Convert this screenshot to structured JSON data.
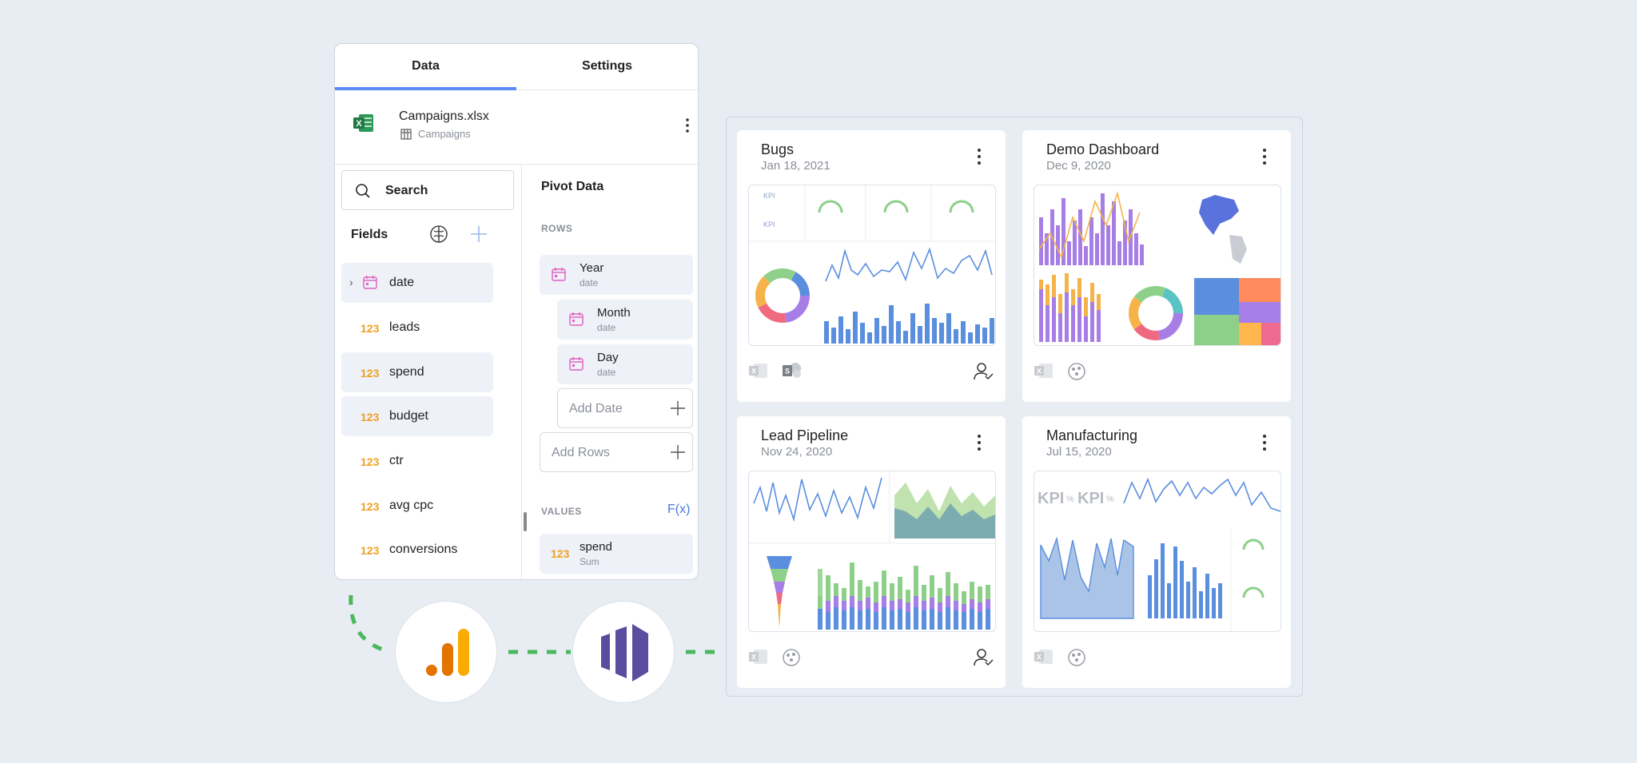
{
  "tabs": {
    "data": "Data",
    "settings": "Settings"
  },
  "file": {
    "name": "Campaigns.xlsx",
    "sheet": "Campaigns"
  },
  "search": {
    "label": "Search"
  },
  "fields": {
    "title": "Fields",
    "items": [
      {
        "label": "date",
        "kind": "date",
        "selected": true
      },
      {
        "label": "leads",
        "kind": "number",
        "selected": false
      },
      {
        "label": "spend",
        "kind": "number",
        "selected": true
      },
      {
        "label": "budget",
        "kind": "number",
        "selected": true
      },
      {
        "label": "ctr",
        "kind": "number",
        "selected": false
      },
      {
        "label": "avg cpc",
        "kind": "number",
        "selected": false
      },
      {
        "label": "conversions",
        "kind": "number",
        "selected": false
      }
    ],
    "number_badge": "123"
  },
  "pivot": {
    "title": "Pivot Data",
    "rows_label": "ROWS",
    "rows": [
      {
        "main": "Year",
        "sub": "date"
      },
      {
        "main": "Month",
        "sub": "date"
      },
      {
        "main": "Day",
        "sub": "date"
      }
    ],
    "add_date": "Add Date",
    "add_rows": "Add Rows",
    "values_label": "VALUES",
    "fx": "F(x)",
    "values": [
      {
        "main": "spend",
        "sub": "Sum"
      }
    ]
  },
  "dashboards": [
    {
      "title": "Bugs",
      "date": "Jan 18, 2021"
    },
    {
      "title": "Demo Dashboard",
      "date": "Dec 9, 2020"
    },
    {
      "title": "Lead Pipeline",
      "date": "Nov 24, 2020"
    },
    {
      "title": "Manufacturing",
      "date": "Jul 15, 2020"
    }
  ],
  "kpi_text": {
    "small": "KPI",
    "pct": "%"
  },
  "colors": {
    "accent": "#5b8cf5",
    "number": "#f0a020",
    "date_icon": "#e05fc0",
    "connector": "#4cb85c"
  }
}
